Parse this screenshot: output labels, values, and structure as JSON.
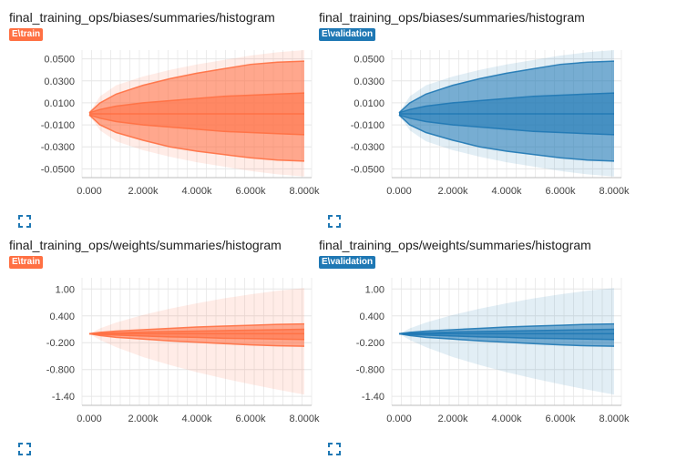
{
  "cards": [
    {
      "title": "final_training_ops/biases/summaries/histogram",
      "run": "E\\train",
      "color": "#ff7043",
      "chart_data": {
        "type": "area",
        "x_ticks": [
          "0.000",
          "2.000k",
          "4.000k",
          "6.000k",
          "8.000k"
        ],
        "y_ticks": [
          "0.0500",
          "0.0300",
          "0.0100",
          "-0.0100",
          "-0.0300",
          "-0.0500"
        ],
        "xlim": [
          0,
          8000
        ],
        "ylim": [
          -0.058,
          0.058
        ],
        "y_tick_values": [
          0.05,
          0.03,
          0.01,
          -0.01,
          -0.03,
          -0.05
        ],
        "x": [
          0,
          400,
          1000,
          2000,
          3000,
          4000,
          5000,
          6000,
          7000,
          8000
        ],
        "bands": {
          "outer_max": [
            0.001,
            0.016,
            0.026,
            0.034,
            0.04,
            0.045,
            0.049,
            0.053,
            0.056,
            0.058
          ],
          "outer_min": [
            -0.001,
            -0.015,
            -0.025,
            -0.033,
            -0.039,
            -0.044,
            -0.048,
            -0.052,
            -0.055,
            -0.057
          ],
          "max": [
            0.001,
            0.01,
            0.018,
            0.026,
            0.032,
            0.037,
            0.041,
            0.045,
            0.047,
            0.048
          ],
          "min": [
            -0.001,
            -0.01,
            -0.017,
            -0.024,
            -0.03,
            -0.034,
            -0.037,
            -0.04,
            -0.042,
            -0.043
          ],
          "upper_quartile": [
            0.001,
            0.004,
            0.007,
            0.01,
            0.012,
            0.014,
            0.016,
            0.017,
            0.018,
            0.019
          ],
          "lower_quartile": [
            -0.001,
            -0.004,
            -0.007,
            -0.01,
            -0.012,
            -0.014,
            -0.016,
            -0.017,
            -0.018,
            -0.019
          ],
          "median": [
            0.0,
            0.0,
            0.0,
            0.0,
            0.0,
            0.0,
            0.0,
            0.0,
            0.0,
            0.0
          ]
        }
      }
    },
    {
      "title": "final_training_ops/biases/summaries/histogram",
      "run": "E\\validation",
      "color": "#1f78b4",
      "chart_data": {
        "type": "area",
        "x_ticks": [
          "0.000",
          "2.000k",
          "4.000k",
          "6.000k",
          "8.000k"
        ],
        "y_ticks": [
          "0.0500",
          "0.0300",
          "0.0100",
          "-0.0100",
          "-0.0300",
          "-0.0500"
        ],
        "xlim": [
          0,
          8000
        ],
        "ylim": [
          -0.058,
          0.058
        ],
        "y_tick_values": [
          0.05,
          0.03,
          0.01,
          -0.01,
          -0.03,
          -0.05
        ],
        "x": [
          0,
          400,
          1000,
          2000,
          3000,
          4000,
          5000,
          6000,
          7000,
          8000
        ],
        "bands": {
          "outer_max": [
            0.001,
            0.016,
            0.026,
            0.034,
            0.04,
            0.045,
            0.049,
            0.053,
            0.056,
            0.058
          ],
          "outer_min": [
            -0.001,
            -0.015,
            -0.025,
            -0.033,
            -0.039,
            -0.044,
            -0.048,
            -0.052,
            -0.055,
            -0.057
          ],
          "max": [
            0.001,
            0.01,
            0.018,
            0.026,
            0.032,
            0.037,
            0.041,
            0.045,
            0.047,
            0.048
          ],
          "min": [
            -0.001,
            -0.01,
            -0.017,
            -0.024,
            -0.03,
            -0.034,
            -0.037,
            -0.04,
            -0.042,
            -0.043
          ],
          "upper_quartile": [
            0.001,
            0.004,
            0.007,
            0.01,
            0.012,
            0.014,
            0.016,
            0.017,
            0.018,
            0.019
          ],
          "lower_quartile": [
            -0.001,
            -0.004,
            -0.007,
            -0.01,
            -0.012,
            -0.014,
            -0.016,
            -0.017,
            -0.018,
            -0.019
          ],
          "median": [
            0.0,
            0.0,
            0.0,
            0.0,
            0.0,
            0.0,
            0.0,
            0.0,
            0.0,
            0.0
          ]
        }
      }
    },
    {
      "title": "final_training_ops/weights/summaries/histogram",
      "run": "E\\train",
      "color": "#ff7043",
      "chart_data": {
        "type": "area",
        "x_ticks": [
          "0.000",
          "2.000k",
          "4.000k",
          "6.000k",
          "8.000k"
        ],
        "y_ticks": [
          "1.00",
          "0.400",
          "-0.200",
          "-0.800",
          "-1.40"
        ],
        "xlim": [
          0,
          8000
        ],
        "ylim": [
          -1.6,
          1.25
        ],
        "y_tick_values": [
          1.0,
          0.4,
          -0.2,
          -0.8,
          -1.4
        ],
        "x": [
          0,
          400,
          1000,
          2000,
          3000,
          4000,
          5000,
          6000,
          7000,
          8000
        ],
        "bands": {
          "outer_max": [
            0.0,
            0.12,
            0.25,
            0.42,
            0.56,
            0.68,
            0.79,
            0.88,
            0.96,
            1.02
          ],
          "outer_min": [
            0.0,
            -0.14,
            -0.3,
            -0.52,
            -0.7,
            -0.86,
            -1.0,
            -1.13,
            -1.25,
            -1.36
          ],
          "max": [
            0.0,
            0.03,
            0.06,
            0.09,
            0.12,
            0.15,
            0.17,
            0.19,
            0.21,
            0.22
          ],
          "min": [
            0.0,
            -0.04,
            -0.08,
            -0.12,
            -0.16,
            -0.19,
            -0.22,
            -0.25,
            -0.27,
            -0.28
          ],
          "upper_quartile": [
            0.0,
            0.01,
            0.02,
            0.04,
            0.05,
            0.06,
            0.07,
            0.08,
            0.09,
            0.1
          ],
          "lower_quartile": [
            0.0,
            -0.02,
            -0.03,
            -0.05,
            -0.07,
            -0.08,
            -0.1,
            -0.11,
            -0.12,
            -0.13
          ],
          "median": [
            0.0,
            0.0,
            0.0,
            0.0,
            0.0,
            0.0,
            0.0,
            0.0,
            0.0,
            0.0
          ]
        }
      }
    },
    {
      "title": "final_training_ops/weights/summaries/histogram",
      "run": "E\\validation",
      "color": "#1f78b4",
      "chart_data": {
        "type": "area",
        "x_ticks": [
          "0.000",
          "2.000k",
          "4.000k",
          "6.000k",
          "8.000k"
        ],
        "y_ticks": [
          "1.00",
          "0.400",
          "-0.200",
          "-0.800",
          "-1.40"
        ],
        "xlim": [
          0,
          8000
        ],
        "ylim": [
          -1.6,
          1.25
        ],
        "y_tick_values": [
          1.0,
          0.4,
          -0.2,
          -0.8,
          -1.4
        ],
        "x": [
          0,
          400,
          1000,
          2000,
          3000,
          4000,
          5000,
          6000,
          7000,
          8000
        ],
        "bands": {
          "outer_max": [
            0.0,
            0.12,
            0.25,
            0.42,
            0.56,
            0.68,
            0.79,
            0.88,
            0.96,
            1.02
          ],
          "outer_min": [
            0.0,
            -0.14,
            -0.3,
            -0.52,
            -0.7,
            -0.86,
            -1.0,
            -1.13,
            -1.25,
            -1.36
          ],
          "max": [
            0.0,
            0.03,
            0.06,
            0.09,
            0.12,
            0.15,
            0.17,
            0.19,
            0.21,
            0.22
          ],
          "min": [
            0.0,
            -0.04,
            -0.08,
            -0.12,
            -0.16,
            -0.19,
            -0.22,
            -0.25,
            -0.27,
            -0.28
          ],
          "upper_quartile": [
            0.0,
            0.01,
            0.02,
            0.04,
            0.05,
            0.06,
            0.07,
            0.08,
            0.09,
            0.1
          ],
          "lower_quartile": [
            0.0,
            -0.02,
            -0.03,
            -0.05,
            -0.07,
            -0.08,
            -0.1,
            -0.11,
            -0.12,
            -0.13
          ],
          "median": [
            0.0,
            0.0,
            0.0,
            0.0,
            0.0,
            0.0,
            0.0,
            0.0,
            0.0,
            0.0
          ]
        }
      }
    }
  ],
  "icons": {
    "expand": "fullscreen-icon"
  }
}
